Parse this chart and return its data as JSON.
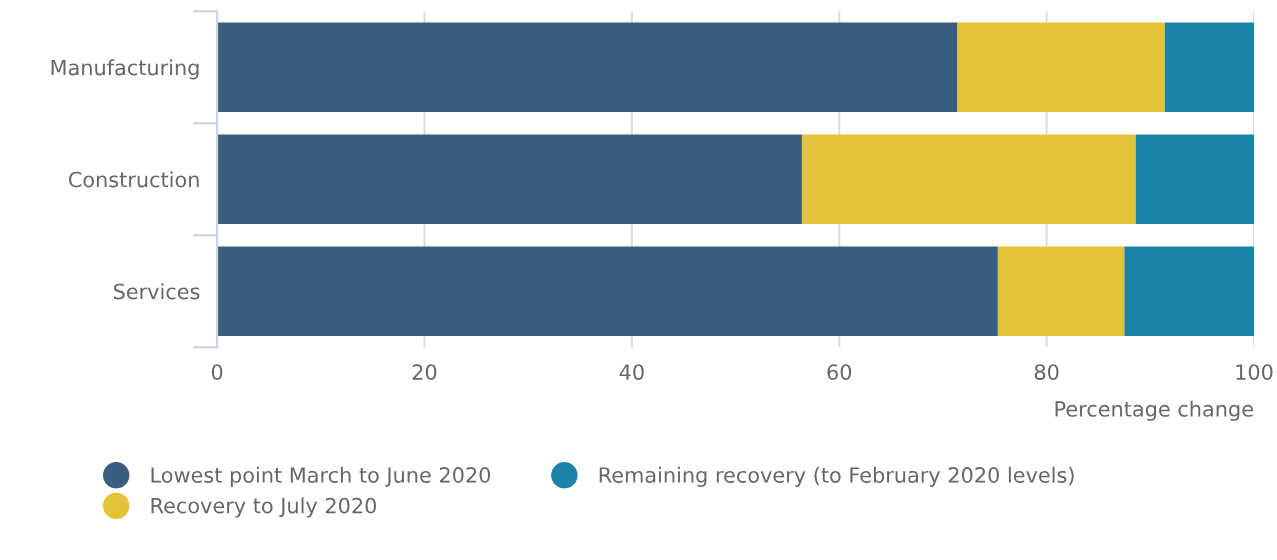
{
  "chart_data": {
    "type": "bar",
    "orientation": "horizontal",
    "stacked": true,
    "xlabel": "Percentage change",
    "categories": [
      "Manufacturing",
      "Construction",
      "Services"
    ],
    "series": [
      {
        "name": "Lowest point March to June 2020",
        "color": "#3a5e7f",
        "values": [
          71.4,
          56.4,
          75.3
        ]
      },
      {
        "name": "Recovery to July 2020",
        "color": "#e2c339",
        "values": [
          20.0,
          32.2,
          12.2
        ]
      },
      {
        "name": "Remaining recovery (to February 2020 levels)",
        "color": "#1a83aa",
        "values": [
          8.6,
          11.4,
          12.5
        ]
      }
    ],
    "xlim": [
      0,
      100
    ],
    "xticks": [
      0,
      20,
      40,
      60,
      80,
      100
    ],
    "grid": "x",
    "legend": "bottom"
  }
}
